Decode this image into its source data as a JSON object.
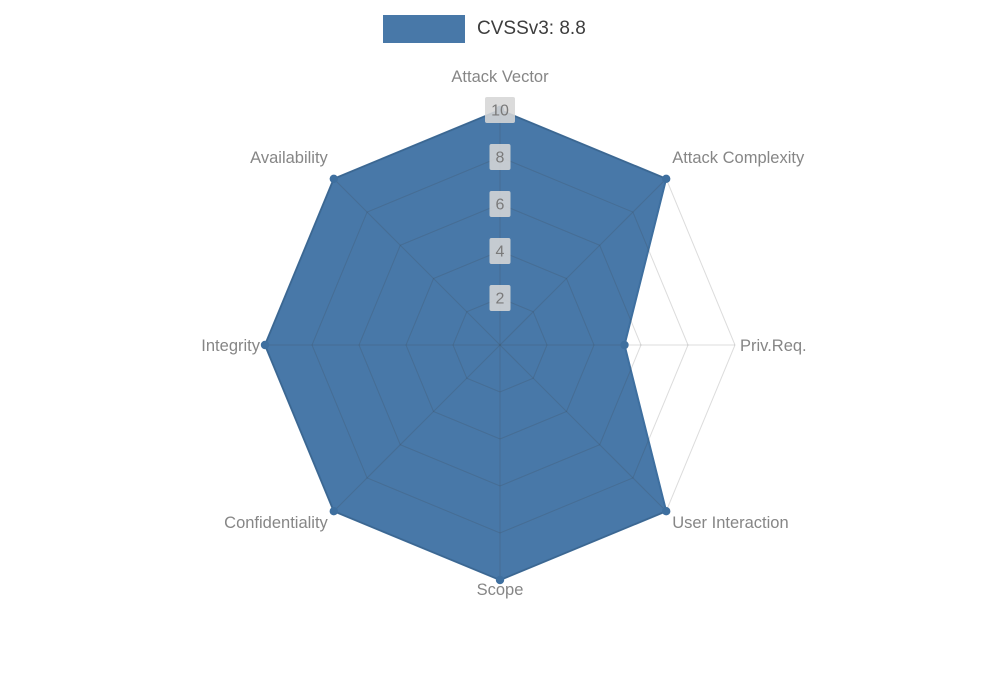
{
  "legend": {
    "label": "CVSSv3: 8.8",
    "swatch_color": "#4878a8"
  },
  "chart_data": {
    "type": "radar",
    "title": "CVSSv3: 8.8",
    "axes": [
      "Attack Vector",
      "Attack Complexity",
      "Priv.Req.",
      "User Interaction",
      "Scope",
      "Confidentiality",
      "Integrity",
      "Availability"
    ],
    "series": [
      {
        "name": "CVSSv3: 8.8",
        "values": [
          10,
          10,
          5.3,
          10,
          10,
          10,
          10,
          10
        ]
      }
    ],
    "radial_ticks": [
      "2",
      "4",
      "6",
      "8",
      "10"
    ],
    "radial_range": [
      0,
      10
    ],
    "grid": true,
    "legend_position": "top-center",
    "colors": {
      "fill": "#4878a8",
      "line": "#3e6f9f",
      "marker": "#3e6f9f",
      "grid_overlay": "rgba(60,60,60,0.18)",
      "axis_label": "#868686",
      "tick_label": "#7a7a7a",
      "tick_bg": "#d6d6d6",
      "legend_text": "#3d3d3d"
    }
  }
}
